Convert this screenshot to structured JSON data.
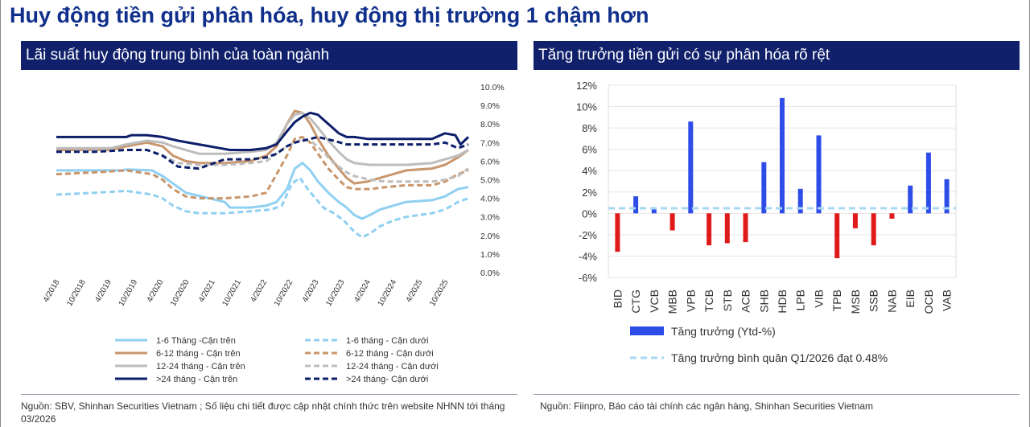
{
  "page": {
    "title": "Huy động tiền gửi phân hóa, huy động thị trường 1 chậm hơn",
    "left_panel_title": "Lãi suất huy động trung bình của toàn ngành",
    "right_panel_title": "Tăng trưởng tiền gửi có sự phân hóa rõ rệt",
    "left_source": "Nguồn: SBV,  Shinhan Securities Vietnam ; Số liệu chi tiết được cập nhật chính thức trên website NHNN tới tháng 03/2026",
    "right_source": "Nguồn: Fiinpro, Báo cáo tài chính các ngân hàng, Shinhan Securities Vietnam"
  },
  "chart_data": [
    {
      "type": "line",
      "y_axis_side": "right",
      "ylim": [
        0,
        10
      ],
      "y_ticks": [
        "0.0%",
        "1.0%",
        "2.0%",
        "3.0%",
        "4.0%",
        "5.0%",
        "6.0%",
        "7.0%",
        "8.0%",
        "9.0%",
        "10.0%"
      ],
      "x_labels": [
        "4/2018",
        "10/2018",
        "4/2019",
        "10/2019",
        "4/2020",
        "10/2020",
        "4/2021",
        "10/2021",
        "4/2022",
        "10/2022",
        "4/2023",
        "10/2023",
        "4/2024",
        "10/2024",
        "4/2025",
        "10/2025"
      ],
      "legend_position": "bottom",
      "series": [
        {
          "name": "1-6 Tháng -Cận trên",
          "color": "#8fd0f2",
          "dashed": false,
          "x": [
            2018.25,
            2019.5,
            2019.6,
            2020.1,
            2020.3,
            2020.5,
            2020.75,
            2021.5,
            2021.6,
            2022.0,
            2022.3,
            2022.5,
            2022.7,
            2022.85,
            2023.0,
            2023.15,
            2023.3,
            2023.5,
            2023.7,
            2023.85,
            2024.0,
            2024.15,
            2024.3,
            2024.5,
            2024.75,
            2025.0,
            2025.5,
            2025.75,
            2026.0,
            2026.2
          ],
          "y": [
            5.5,
            5.5,
            5.55,
            5.5,
            5.2,
            4.8,
            4.3,
            3.8,
            3.5,
            3.5,
            3.6,
            3.8,
            4.5,
            5.6,
            5.9,
            5.5,
            4.9,
            4.3,
            3.8,
            3.5,
            3.1,
            2.9,
            3.1,
            3.4,
            3.6,
            3.8,
            3.9,
            4.1,
            4.5,
            4.6
          ]
        },
        {
          "name": "1-6 tháng - Cận dưới",
          "color": "#8fd0f2",
          "dashed": true,
          "x": [
            2018.25,
            2019.0,
            2019.6,
            2020.1,
            2020.3,
            2020.5,
            2020.75,
            2021.0,
            2021.5,
            2022.0,
            2022.4,
            2022.6,
            2022.8,
            2022.95,
            2023.1,
            2023.25,
            2023.4,
            2023.6,
            2023.8,
            2024.0,
            2024.15,
            2024.3,
            2024.5,
            2024.75,
            2025.0,
            2025.5,
            2025.75,
            2026.0,
            2026.2
          ],
          "y": [
            4.2,
            4.3,
            4.4,
            4.2,
            4.0,
            3.6,
            3.3,
            3.2,
            3.2,
            3.3,
            3.4,
            3.6,
            4.8,
            5.1,
            4.5,
            4.0,
            3.5,
            3.2,
            2.8,
            2.2,
            1.9,
            2.1,
            2.5,
            2.8,
            3.0,
            3.2,
            3.4,
            3.8,
            4.0
          ]
        },
        {
          "name": "6-12 tháng - Cận trên",
          "color": "#c9956a",
          "dashed": false,
          "x": [
            2018.25,
            2019.3,
            2019.6,
            2020.0,
            2020.3,
            2020.5,
            2020.75,
            2021.0,
            2021.5,
            2022.0,
            2022.3,
            2022.5,
            2022.7,
            2022.85,
            2023.0,
            2023.15,
            2023.3,
            2023.5,
            2023.7,
            2023.85,
            2024.0,
            2024.25,
            2024.5,
            2024.75,
            2025.0,
            2025.5,
            2025.75,
            2026.0,
            2026.2
          ],
          "y": [
            6.6,
            6.6,
            6.8,
            7.0,
            6.8,
            6.3,
            6.0,
            5.9,
            5.9,
            6.0,
            6.3,
            6.8,
            8.0,
            8.7,
            8.6,
            8.0,
            7.2,
            6.3,
            5.6,
            5.1,
            4.8,
            4.9,
            5.1,
            5.3,
            5.5,
            5.6,
            5.8,
            6.2,
            6.6
          ]
        },
        {
          "name": "6-12 tháng - Cận dưới",
          "color": "#c9956a",
          "dashed": true,
          "x": [
            2018.25,
            2019.0,
            2019.6,
            2020.1,
            2020.3,
            2020.5,
            2020.75,
            2021.0,
            2021.5,
            2022.0,
            2022.3,
            2022.5,
            2022.7,
            2022.85,
            2023.0,
            2023.15,
            2023.3,
            2023.5,
            2023.7,
            2023.85,
            2024.0,
            2024.3,
            2024.6,
            2025.0,
            2025.5,
            2025.75,
            2026.0,
            2026.2
          ],
          "y": [
            5.3,
            5.4,
            5.5,
            5.3,
            5.0,
            4.5,
            4.1,
            4.0,
            4.0,
            4.1,
            4.3,
            5.3,
            6.3,
            7.2,
            7.3,
            7.0,
            6.4,
            5.6,
            5.0,
            4.6,
            4.5,
            4.5,
            4.6,
            4.7,
            4.7,
            4.9,
            5.3,
            5.5
          ]
        },
        {
          "name": "12-24 tháng - Cận trên",
          "color": "#bdbdbd",
          "dashed": false,
          "x": [
            2018.25,
            2019.3,
            2019.6,
            2020.0,
            2020.3,
            2020.5,
            2020.75,
            2021.0,
            2021.5,
            2022.0,
            2022.3,
            2022.5,
            2022.7,
            2022.85,
            2023.0,
            2023.15,
            2023.3,
            2023.5,
            2023.7,
            2023.85,
            2024.0,
            2024.3,
            2024.6,
            2025.0,
            2025.5,
            2025.75,
            2026.0,
            2026.2
          ],
          "y": [
            6.7,
            6.7,
            6.9,
            7.1,
            7.0,
            6.8,
            6.6,
            6.4,
            6.4,
            6.5,
            6.6,
            7.0,
            8.0,
            8.5,
            8.6,
            8.3,
            7.8,
            7.1,
            6.5,
            6.1,
            5.9,
            5.8,
            5.8,
            5.8,
            5.9,
            6.1,
            6.3,
            6.6
          ]
        },
        {
          "name": "12-24 tháng - Cận dưới",
          "color": "#bdbdbd",
          "dashed": true,
          "x": [
            2018.25,
            2019.6,
            2020.0,
            2020.3,
            2020.6,
            2021.0,
            2021.5,
            2022.0,
            2022.3,
            2022.5,
            2022.7,
            2022.85,
            2023.0,
            2023.2,
            2023.4,
            2023.6,
            2023.85,
            2024.0,
            2024.3,
            2024.6,
            2025.0,
            2025.5,
            2025.75,
            2026.0,
            2026.2
          ],
          "y": [
            6.5,
            6.6,
            6.6,
            6.3,
            5.9,
            5.8,
            5.8,
            5.9,
            6.0,
            6.4,
            6.8,
            7.0,
            7.2,
            7.0,
            6.5,
            5.9,
            5.4,
            5.2,
            5.0,
            4.9,
            4.9,
            4.9,
            5.0,
            5.2,
            5.6
          ]
        },
        {
          "name": ">24 tháng - Cận trên",
          "color": "#0d1e6b",
          "dashed": false,
          "x": [
            2018.25,
            2019.6,
            2019.7,
            2020.0,
            2020.3,
            2020.6,
            2021.0,
            2021.4,
            2021.6,
            2022.0,
            2022.3,
            2022.5,
            2022.7,
            2022.85,
            2023.0,
            2023.15,
            2023.3,
            2023.5,
            2023.7,
            2023.85,
            2024.0,
            2024.25,
            2024.5,
            2024.75,
            2025.0,
            2025.5,
            2025.75,
            2025.95,
            2026.05,
            2026.2
          ],
          "y": [
            7.3,
            7.3,
            7.4,
            7.4,
            7.3,
            7.1,
            6.9,
            6.7,
            6.6,
            6.6,
            6.7,
            6.9,
            7.6,
            8.1,
            8.4,
            8.6,
            8.5,
            8.0,
            7.5,
            7.3,
            7.3,
            7.2,
            7.2,
            7.2,
            7.2,
            7.2,
            7.5,
            7.4,
            6.9,
            7.3
          ]
        },
        {
          "name": ">24 tháng- Cận dưới",
          "color": "#0d1e6b",
          "dashed": true,
          "x": [
            2018.25,
            2019.0,
            2019.6,
            2020.0,
            2020.3,
            2020.6,
            2021.0,
            2021.5,
            2022.0,
            2022.3,
            2022.5,
            2022.7,
            2022.85,
            2023.0,
            2023.3,
            2023.6,
            2023.85,
            2024.0,
            2024.3,
            2024.6,
            2025.0,
            2025.5,
            2025.75,
            2026.0,
            2026.2
          ],
          "y": [
            6.5,
            6.5,
            6.6,
            6.6,
            6.3,
            5.7,
            5.6,
            6.1,
            6.1,
            6.2,
            6.4,
            6.8,
            7.0,
            7.1,
            7.3,
            7.1,
            6.9,
            6.9,
            6.9,
            6.9,
            6.9,
            6.9,
            7.0,
            6.7,
            6.9
          ]
        }
      ]
    },
    {
      "type": "bar",
      "categories": [
        "BID",
        "CTG",
        "VCB",
        "MBB",
        "VPB",
        "TCB",
        "STB",
        "ACB",
        "SHB",
        "HDB",
        "LPB",
        "VIB",
        "TPB",
        "MSB",
        "SSB",
        "NAB",
        "EIB",
        "OCB",
        "VAB"
      ],
      "values": [
        -3.6,
        1.6,
        0.4,
        -1.6,
        8.6,
        -3.0,
        -2.8,
        -2.7,
        4.8,
        10.8,
        2.3,
        7.3,
        -4.2,
        -1.4,
        -3.0,
        -0.5,
        2.6,
        5.7,
        3.2
      ],
      "ylim": [
        -6,
        12
      ],
      "y_ticks": [
        "-6%",
        "-4%",
        "-2%",
        "0%",
        "2%",
        "4%",
        "6%",
        "8%",
        "10%",
        "12%"
      ],
      "positive_color": "#2e4de8",
      "negative_color": "#e01a1a",
      "average_line": {
        "value": 0.48,
        "color": "#a8d8f3",
        "dashed": true
      },
      "legend": [
        {
          "label": "Tăng trưởng (Ytd-%)",
          "color": "#2e4de8",
          "kind": "bar"
        },
        {
          "label": "Tăng trưởng bình quân  Q1/2026 đạt 0.48%",
          "color": "#a8d8f3",
          "kind": "dashed-line"
        }
      ],
      "legend_position": "bottom"
    }
  ]
}
